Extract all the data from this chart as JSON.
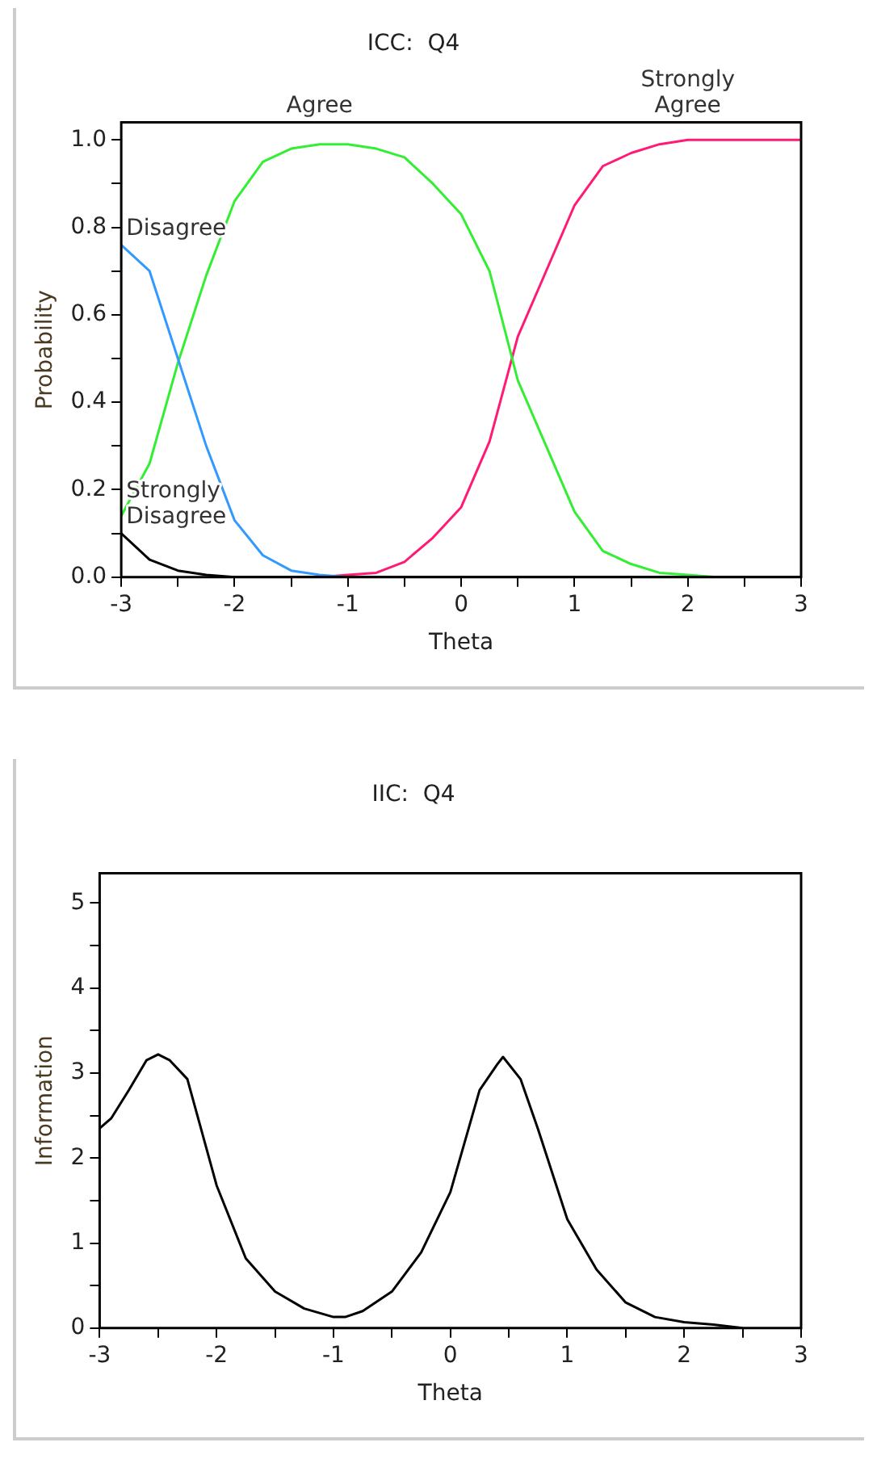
{
  "chart_data": [
    {
      "type": "line",
      "title": "ICC:  Q4",
      "xlabel": "Theta",
      "ylabel": "Probability",
      "legend": false,
      "marker": "none",
      "line_style": "solid",
      "x": [
        -3,
        -2.75,
        -2.5,
        -2.25,
        -2,
        -1.75,
        -1.5,
        -1.25,
        -1,
        -0.75,
        -0.5,
        -0.25,
        0,
        0.25,
        0.5,
        0.75,
        1,
        1.25,
        1.5,
        1.75,
        2,
        2.25,
        2.5,
        2.75,
        3
      ],
      "series": [
        {
          "name": "Strongly Disagree",
          "color": "#000000",
          "values": [
            0.1,
            0.04,
            0.015,
            0.005,
            0,
            0,
            0,
            0,
            0,
            0,
            0,
            0,
            0,
            0,
            0,
            0,
            0,
            0,
            0,
            0,
            0,
            0,
            0,
            0,
            0
          ]
        },
        {
          "name": "Disagree",
          "color": "#3399ff",
          "values": [
            0.76,
            0.7,
            0.5,
            0.3,
            0.13,
            0.05,
            0.015,
            0.005,
            0,
            null,
            null,
            null,
            null,
            null,
            null,
            null,
            null,
            null,
            null,
            null,
            null,
            null,
            null,
            null,
            null
          ]
        },
        {
          "name": "Agree",
          "color": "#33ee33",
          "values": [
            0.14,
            0.26,
            0.49,
            0.69,
            0.86,
            0.95,
            0.98,
            0.99,
            0.99,
            0.98,
            0.96,
            0.9,
            0.83,
            0.7,
            0.45,
            0.3,
            0.15,
            0.06,
            0.03,
            0.01,
            0.005,
            0,
            0,
            null,
            null
          ]
        },
        {
          "name": "Strongly Agree",
          "color": "#ff1a75",
          "values": [
            null,
            null,
            null,
            null,
            null,
            null,
            0,
            0,
            0.005,
            0.01,
            0.035,
            0.09,
            0.16,
            0.31,
            0.55,
            0.7,
            0.85,
            0.94,
            0.97,
            0.99,
            1,
            1,
            1,
            1,
            1
          ]
        }
      ],
      "xlim": [
        -3,
        3
      ],
      "xticks": [
        -3,
        {
          "value": -2.5,
          "label": null
        },
        -2,
        {
          "value": -1.5,
          "label": null
        },
        -1,
        {
          "value": -0.5,
          "label": null
        },
        0,
        {
          "value": 0.5,
          "label": null
        },
        1,
        {
          "value": 1.5,
          "label": null
        },
        2,
        {
          "value": 2.5,
          "label": null
        },
        3
      ],
      "ylim": [
        0,
        1.04
      ],
      "yticks": [
        {
          "value": 0,
          "label": "0.0"
        },
        {
          "value": 0.1,
          "label": null
        },
        0.2,
        {
          "value": 0.3,
          "label": null
        },
        0.4,
        {
          "value": 0.5,
          "label": null
        },
        0.6,
        {
          "value": 0.7,
          "label": null
        },
        0.8,
        {
          "value": 0.9,
          "label": null
        },
        {
          "value": 1,
          "label": "1.0"
        }
      ]
    },
    {
      "type": "line",
      "title": "IIC:  Q4",
      "xlabel": "Theta",
      "ylabel": "Information",
      "legend": false,
      "marker": "none",
      "line_style": "solid",
      "x": [
        -3,
        -2.9,
        -2.75,
        -2.6,
        -2.5,
        -2.4,
        -2.25,
        -2,
        -1.75,
        -1.5,
        -1.25,
        -1,
        -0.9,
        -0.75,
        -0.5,
        -0.25,
        0,
        0.25,
        0.4,
        0.45,
        0.6,
        0.75,
        1,
        1.25,
        1.5,
        1.75,
        2,
        2.25,
        2.5
      ],
      "series": [
        {
          "color": "#000000",
          "values": [
            2.35,
            2.47,
            2.8,
            3.15,
            3.22,
            3.15,
            2.93,
            1.68,
            0.82,
            0.43,
            0.23,
            0.13,
            0.13,
            0.2,
            0.43,
            0.89,
            1.6,
            2.8,
            3.1,
            3.19,
            2.93,
            2.34,
            1.28,
            0.69,
            0.3,
            0.13,
            0.07,
            0.04,
            0
          ]
        }
      ],
      "xlim": [
        -3,
        3
      ],
      "xticks": [
        -3,
        {
          "value": -2.5,
          "label": null
        },
        -2,
        {
          "value": -1.5,
          "label": null
        },
        -1,
        {
          "value": -0.5,
          "label": null
        },
        0,
        {
          "value": 0.5,
          "label": null
        },
        1,
        {
          "value": 1.5,
          "label": null
        },
        2,
        {
          "value": 2.5,
          "label": null
        },
        3
      ],
      "ylim": [
        0,
        5.35
      ],
      "yticks": [
        0,
        {
          "value": 0.5,
          "label": null
        },
        1,
        {
          "value": 1.5,
          "label": null
        },
        2,
        {
          "value": 2.5,
          "label": null
        },
        3,
        {
          "value": 3.5,
          "label": null
        },
        4,
        {
          "value": 4.5,
          "label": null
        },
        5
      ]
    }
  ]
}
